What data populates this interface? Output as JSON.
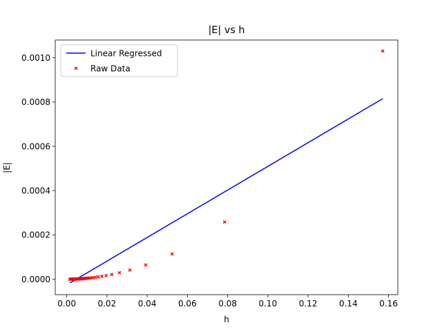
{
  "chart_data": {
    "type": "scatter",
    "title": "|E| vs h",
    "xlabel": "h",
    "ylabel": "|E|",
    "xlim": [
      -0.0057,
      0.1646
    ],
    "ylim": [
      -7e-05,
      0.00108
    ],
    "x_ticks": [
      0.0,
      0.02,
      0.04,
      0.06,
      0.08,
      0.1,
      0.12,
      0.14,
      0.16
    ],
    "x_tick_labels": [
      "0.00",
      "0.02",
      "0.04",
      "0.06",
      "0.08",
      "0.10",
      "0.12",
      "0.14",
      "0.16"
    ],
    "y_ticks": [
      0.0,
      0.0002,
      0.0004,
      0.0006,
      0.0008,
      0.001
    ],
    "y_tick_labels": [
      "0.0000",
      "0.0002",
      "0.0004",
      "0.0006",
      "0.0008",
      "0.0010"
    ],
    "grid": false,
    "legend_position": "top-left",
    "series": [
      {
        "name": "Linear Regressed",
        "kind": "line",
        "color": "#0000ff",
        "x": [
          0.0016,
          0.1571
        ],
        "y": [
          -1.7e-05,
          0.000815
        ]
      },
      {
        "name": "Raw Data",
        "kind": "scatter",
        "marker": "x",
        "color": "#ff0000",
        "x": [
          0.1571,
          0.0785,
          0.0524,
          0.0393,
          0.0314,
          0.0262,
          0.0224,
          0.0196,
          0.0175,
          0.0157,
          0.0143,
          0.0131,
          0.0121,
          0.0112,
          0.0105,
          0.0098,
          0.0092,
          0.0087,
          0.0083,
          0.0079,
          0.0075,
          0.0071,
          0.0068,
          0.0065,
          0.0063,
          0.006,
          0.0058,
          0.0056,
          0.0054,
          0.0052,
          0.005,
          0.0048,
          0.0045,
          0.0042,
          0.0039,
          0.0036,
          0.0033,
          0.003,
          0.0027,
          0.0024,
          0.0021,
          0.0018,
          0.0016
        ],
        "y": [
          0.00103,
          0.000258,
          0.000114,
          6.4e-05,
          4.1e-05,
          2.9e-05,
          2.1e-05,
          1.6e-05,
          1.3e-05,
          1.03e-05,
          8.5e-06,
          7.2e-06,
          6.1e-06,
          5.2e-06,
          4.5e-06,
          4e-06,
          3.5e-06,
          3.1e-06,
          2.8e-06,
          2.5e-06,
          2.2e-06,
          2e-06,
          1.8e-06,
          1.7e-06,
          1.6e-06,
          1.4e-06,
          1.3e-06,
          1.2e-06,
          1.2e-06,
          1.1e-06,
          1e-06,
          9e-07,
          8e-07,
          7e-07,
          6e-07,
          5e-07,
          4e-07,
          4e-07,
          3e-07,
          2e-07,
          2e-07,
          1e-07,
          1e-07
        ]
      }
    ]
  }
}
